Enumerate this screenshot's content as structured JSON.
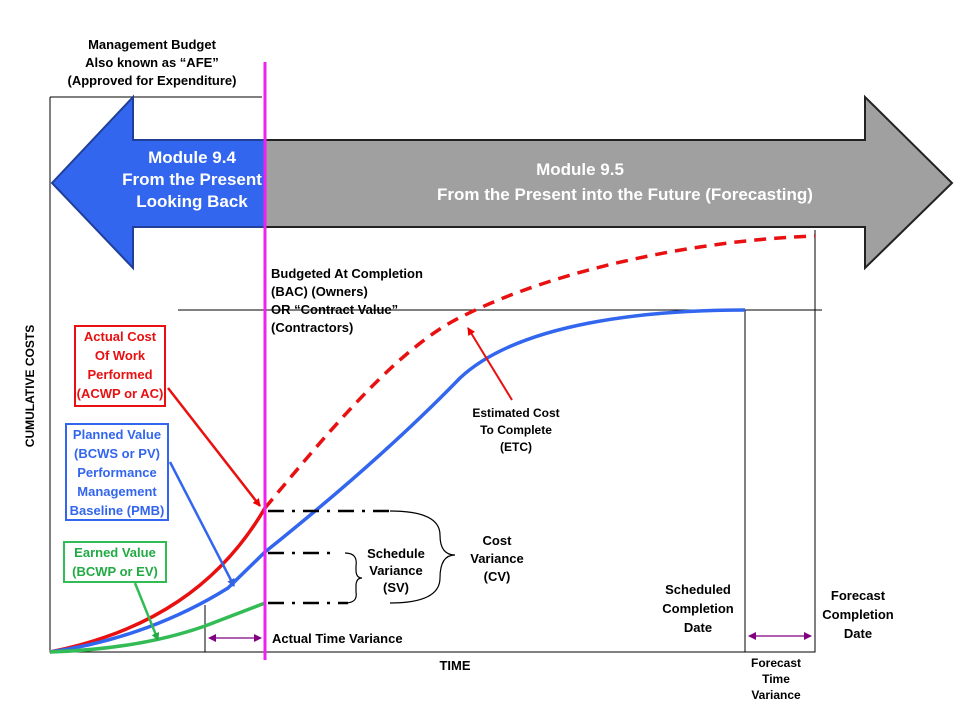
{
  "budget": {
    "lines": [
      "Management Budget",
      "Also known as “AFE”",
      "(Approved for Expenditure)"
    ]
  },
  "module_past": {
    "lines": [
      "Module 9.4",
      "From the Present",
      "Looking Back"
    ]
  },
  "module_future": {
    "lines": [
      "Module 9.5",
      "From the Present into the Future (Forecasting)"
    ]
  },
  "bac": {
    "lines": [
      "Budgeted At Completion",
      "(BAC) (Owners)",
      "OR “Contract Value”",
      "(Contractors)"
    ]
  },
  "actual_cost": {
    "lines": [
      "Actual Cost",
      "Of Work",
      "Performed",
      "(ACWP or AC)"
    ]
  },
  "planned_value": {
    "lines": [
      "Planned Value",
      "(BCWS or PV)",
      "Performance",
      "Management",
      "Baseline (PMB)"
    ]
  },
  "earned_value": {
    "lines": [
      "Earned Value",
      "(BCWP or EV)"
    ]
  },
  "etc": {
    "lines": [
      "Estimated Cost",
      "To Complete",
      "(ETC)"
    ]
  },
  "schedule_variance": {
    "lines": [
      "Schedule",
      "Variance",
      "(SV)"
    ]
  },
  "cost_variance": {
    "lines": [
      "Cost",
      "Variance",
      "(CV)"
    ]
  },
  "scheduled_completion": {
    "lines": [
      "Scheduled",
      "Completion",
      "Date"
    ]
  },
  "forecast_completion": {
    "lines": [
      "Forecast",
      "Completion",
      "Date"
    ]
  },
  "actual_time_variance": "Actual Time Variance",
  "forecast_time_variance": {
    "lines": [
      "Forecast",
      "Time",
      "Variance"
    ]
  },
  "x_axis": "TIME",
  "y_axis": "CUMULATIVE COSTS"
}
